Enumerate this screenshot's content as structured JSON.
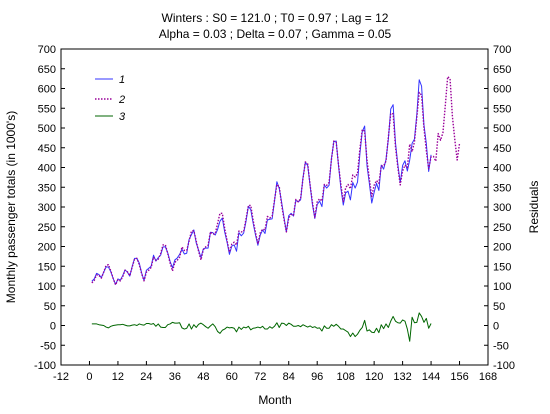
{
  "chart_data": {
    "type": "line",
    "title": "Winters : S0 = 121.0 ; T0 = 0.97 ; Lag = 12",
    "subtitle": "Alpha = 0.03 ; Delta = 0.07 ; Gamma = 0.05",
    "xlabel": "Month",
    "ylabel": "Monthly passenger totals (in 1000's)",
    "ylabel_right": "Residuals",
    "xlim": [
      -12,
      168
    ],
    "ylim": [
      -100,
      700
    ],
    "xticks": [
      -12,
      0,
      12,
      24,
      36,
      48,
      60,
      72,
      84,
      96,
      108,
      120,
      132,
      144,
      156,
      168
    ],
    "yticks": [
      -100,
      -50,
      0,
      50,
      100,
      150,
      200,
      250,
      300,
      350,
      400,
      450,
      500,
      550,
      600,
      650,
      700
    ],
    "legend_position": "top-left",
    "colors": {
      "1": "#3333ff",
      "2": "#990099",
      "3": "#006600"
    },
    "series": [
      {
        "name": "1",
        "style": "solid",
        "x_start": 1,
        "values": [
          112,
          118,
          132,
          129,
          121,
          135,
          148,
          148,
          136,
          119,
          104,
          118,
          115,
          126,
          141,
          135,
          125,
          149,
          170,
          170,
          158,
          133,
          114,
          140,
          145,
          150,
          178,
          163,
          172,
          178,
          199,
          199,
          184,
          162,
          146,
          166,
          171,
          180,
          193,
          181,
          183,
          218,
          230,
          242,
          209,
          191,
          172,
          194,
          196,
          196,
          236,
          235,
          229,
          243,
          264,
          272,
          237,
          211,
          180,
          201,
          204,
          188,
          235,
          227,
          234,
          264,
          302,
          293,
          259,
          229,
          203,
          229,
          242,
          233,
          267,
          269,
          270,
          315,
          364,
          347,
          312,
          274,
          237,
          278,
          284,
          277,
          317,
          313,
          318,
          374,
          413,
          405,
          355,
          306,
          271,
          306,
          315,
          301,
          356,
          348,
          355,
          422,
          465,
          467,
          404,
          347,
          305,
          336,
          340,
          318,
          362,
          348,
          363,
          435,
          491,
          505,
          404,
          359,
          310,
          337,
          360,
          342,
          406,
          396,
          420,
          472,
          548,
          559,
          463,
          407,
          362,
          405,
          417,
          391,
          419,
          461,
          472,
          535,
          622,
          606,
          508,
          461,
          390,
          432
        ]
      },
      {
        "name": "2",
        "style": "dotted",
        "x_start": 1,
        "values": [
          108,
          114,
          128,
          127,
          120,
          135,
          152,
          154,
          138,
          119,
          103,
          116,
          113,
          123,
          140,
          136,
          126,
          148,
          168,
          170,
          154,
          131,
          113,
          135,
          140,
          147,
          173,
          165,
          168,
          182,
          204,
          204,
          182,
          158,
          138,
          160,
          165,
          173,
          199,
          190,
          190,
          214,
          239,
          240,
          214,
          188,
          166,
          192,
          199,
          203,
          237,
          231,
          232,
          258,
          284,
          284,
          246,
          215,
          186,
          206,
          211,
          204,
          239,
          237,
          238,
          270,
          304,
          304,
          266,
          235,
          207,
          235,
          244,
          242,
          276,
          272,
          277,
          317,
          357,
          352,
          306,
          269,
          237,
          272,
          281,
          279,
          319,
          313,
          321,
          372,
          414,
          409,
          356,
          311,
          274,
          313,
          321,
          315,
          357,
          355,
          362,
          420,
          467,
          464,
          406,
          356,
          314,
          349,
          357,
          346,
          381,
          376,
          385,
          447,
          496,
          492,
          418,
          370,
          327,
          355,
          367,
          360,
          404,
          404,
          416,
          477,
          537,
          536,
          452,
          400,
          356,
          391,
          406,
          400,
          459,
          440,
          465,
          527,
          590,
          583,
          500,
          443,
          397,
          427,
          428,
          416,
          486,
          469,
          488,
          557,
          630,
          625,
          529,
          471,
          419,
          461
        ]
      },
      {
        "name": "3",
        "style": "solid",
        "x_start": 1,
        "values": [
          4,
          4,
          4,
          2,
          1,
          0,
          -4,
          -6,
          -2,
          0,
          1,
          2,
          2,
          3,
          1,
          -1,
          -1,
          1,
          2,
          0,
          4,
          2,
          1,
          5,
          5,
          3,
          5,
          -2,
          4,
          -4,
          -5,
          -5,
          2,
          4,
          8,
          6,
          6,
          7,
          -6,
          -9,
          -7,
          4,
          -9,
          2,
          -5,
          3,
          6,
          2,
          -3,
          -7,
          -1,
          4,
          -3,
          -15,
          -20,
          -12,
          -9,
          -4,
          -6,
          -5,
          -7,
          -16,
          -4,
          -10,
          -4,
          -6,
          -2,
          -11,
          -7,
          -6,
          -4,
          -6,
          -2,
          -9,
          -9,
          -3,
          -7,
          -2,
          7,
          -5,
          6,
          5,
          0,
          6,
          3,
          -2,
          -2,
          0,
          -3,
          2,
          -1,
          -4,
          -1,
          -5,
          -3,
          -7,
          -6,
          -14,
          -1,
          -7,
          -7,
          2,
          -2,
          3,
          -2,
          -9,
          -9,
          -13,
          -17,
          -28,
          -19,
          -28,
          -22,
          -12,
          -5,
          13,
          -14,
          -11,
          -17,
          -18,
          -7,
          -18,
          2,
          -8,
          4,
          -5,
          11,
          23,
          11,
          7,
          6,
          14,
          11,
          -9,
          -40,
          21,
          7,
          8,
          32,
          23,
          8,
          18,
          -7,
          5
        ]
      }
    ]
  }
}
